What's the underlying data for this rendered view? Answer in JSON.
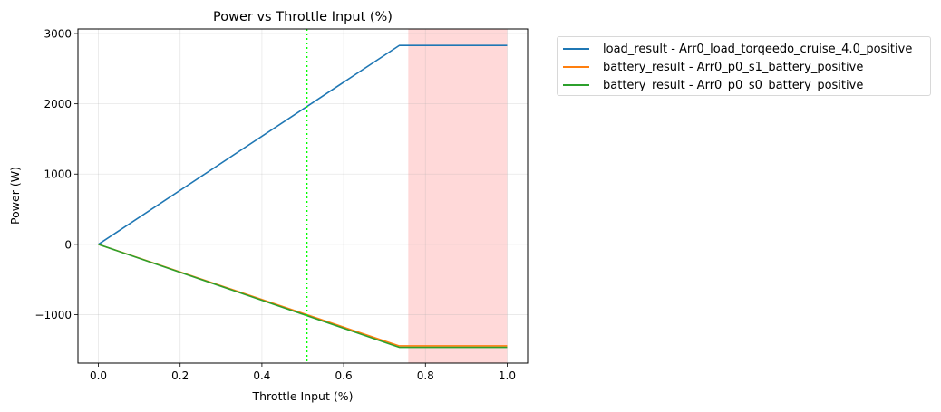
{
  "chart_data": {
    "type": "line",
    "title": "Power vs Throttle Input (%)",
    "xlabel": "Throttle Input (%)",
    "ylabel": "Power (W)",
    "xlim": [
      -0.05,
      1.05
    ],
    "ylim": [
      -1690,
      3065
    ],
    "xticks": [
      0.0,
      0.2,
      0.4,
      0.6,
      0.8,
      1.0
    ],
    "xtick_labels": [
      "0.0",
      "0.2",
      "0.4",
      "0.6",
      "0.8",
      "1.0"
    ],
    "yticks": [
      -1000,
      0,
      1000,
      2000,
      3000
    ],
    "ytick_labels": [
      "−1000",
      "0",
      "1000",
      "2000",
      "3000"
    ],
    "grid": true,
    "legend_position": "outside upper right",
    "series": [
      {
        "name": "load_result - Arr0_load_torqeedo_cruise_4.0_positive",
        "color": "#1f77b4",
        "x": [
          0.0,
          0.736,
          1.0
        ],
        "y": [
          0,
          2830,
          2830
        ]
      },
      {
        "name": "battery_result - Arr0_p0_s1_battery_positive",
        "color": "#ff7f0e",
        "x": [
          0.0,
          0.736,
          1.0
        ],
        "y": [
          0,
          -1445,
          -1445
        ]
      },
      {
        "name": "battery_result - Arr0_p0_s0_battery_positive",
        "color": "#2ca02c",
        "x": [
          0.0,
          0.736,
          1.0
        ],
        "y": [
          0,
          -1465,
          -1465
        ]
      }
    ],
    "annotations": [
      {
        "type": "vline",
        "x": 0.51,
        "color": "#00ff00",
        "style": "dotted"
      },
      {
        "type": "vspan",
        "x0": 0.758,
        "x1": 1.0,
        "color": "#ffb3b3",
        "alpha": 0.5
      }
    ]
  }
}
